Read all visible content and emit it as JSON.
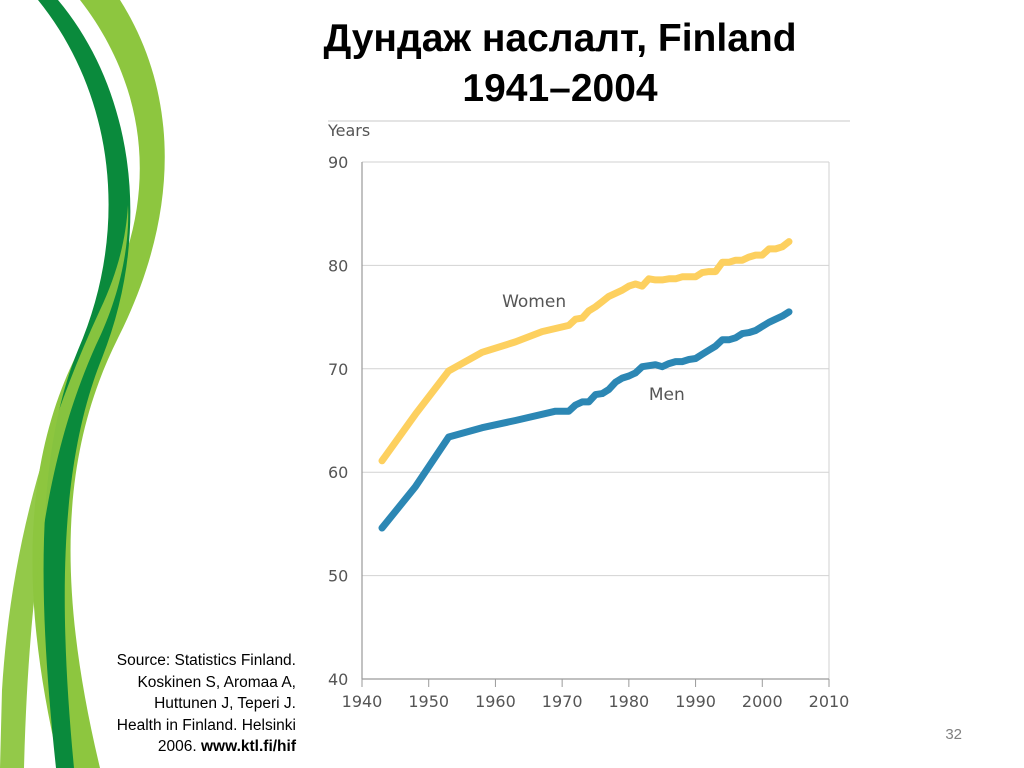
{
  "slide": {
    "title_line1": "Дундаж наслалт, Finland",
    "title_line2": "1941–2004",
    "source_lines": [
      "Source: Statistics Finland.",
      "Koskinen S, Aromaa A,",
      "Huttunen J, Teperi J.",
      "Health in Finland. Helsinki"
    ],
    "source_year": "2006.",
    "source_url": "www.ktl.fi/hif",
    "page_number": "32",
    "colors": {
      "dark_green": "#0a8a3c",
      "light_green": "#8dc63f"
    }
  },
  "chart_data": {
    "type": "line",
    "title": "",
    "xlabel": "",
    "ylabel": "Years",
    "xlim": [
      1940,
      2010
    ],
    "ylim": [
      40,
      90
    ],
    "xticks": [
      1940,
      1950,
      1960,
      1970,
      1980,
      1990,
      2000,
      2010
    ],
    "yticks": [
      40,
      50,
      60,
      70,
      80,
      90
    ],
    "grid": true,
    "legend": "inline labels",
    "series": [
      {
        "name": "Women",
        "color": "#fdd05f",
        "x": [
          1943,
          1948,
          1953,
          1958,
          1963,
          1967,
          1971,
          1972,
          1973,
          1974,
          1975,
          1976,
          1977,
          1978,
          1979,
          1980,
          1981,
          1982,
          1983,
          1984,
          1985,
          1986,
          1987,
          1988,
          1989,
          1990,
          1991,
          1992,
          1993,
          1994,
          1995,
          1996,
          1997,
          1998,
          1999,
          2000,
          2001,
          2002,
          2003,
          2004
        ],
        "values": [
          61.1,
          65.6,
          69.8,
          71.6,
          72.6,
          73.6,
          74.2,
          74.8,
          74.9,
          75.6,
          76.0,
          76.5,
          77.0,
          77.3,
          77.6,
          78.0,
          78.2,
          78.0,
          78.7,
          78.6,
          78.6,
          78.7,
          78.7,
          78.9,
          78.9,
          78.9,
          79.3,
          79.4,
          79.4,
          80.3,
          80.3,
          80.5,
          80.5,
          80.8,
          81.0,
          81.0,
          81.6,
          81.6,
          81.8,
          82.3
        ]
      },
      {
        "name": "Men",
        "color": "#2c87b4",
        "x": [
          1943,
          1948,
          1953,
          1958,
          1963,
          1969,
          1971,
          1972,
          1973,
          1974,
          1975,
          1976,
          1977,
          1978,
          1979,
          1980,
          1981,
          1982,
          1983,
          1984,
          1985,
          1986,
          1987,
          1988,
          1989,
          1990,
          1991,
          1992,
          1993,
          1994,
          1995,
          1996,
          1997,
          1998,
          1999,
          2000,
          2001,
          2002,
          2003,
          2004
        ],
        "values": [
          54.6,
          58.6,
          63.4,
          64.3,
          65.0,
          65.9,
          65.9,
          66.5,
          66.8,
          66.8,
          67.5,
          67.6,
          68.0,
          68.7,
          69.1,
          69.3,
          69.6,
          70.2,
          70.3,
          70.4,
          70.2,
          70.5,
          70.7,
          70.7,
          70.9,
          71.0,
          71.4,
          71.8,
          72.2,
          72.8,
          72.8,
          73.0,
          73.4,
          73.5,
          73.7,
          74.1,
          74.5,
          74.8,
          75.1,
          75.5
        ]
      }
    ]
  }
}
